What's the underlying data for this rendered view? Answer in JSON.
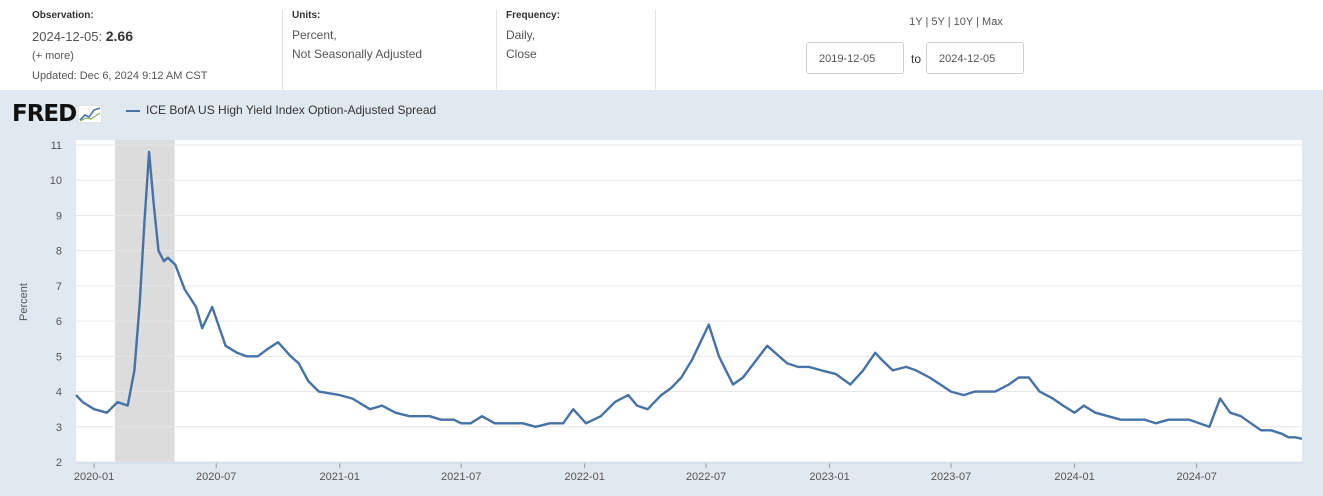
{
  "header": {
    "observation_label": "Observation:",
    "observation_date": "2024-12-05:",
    "observation_value": "2.66",
    "more_link": "(+ more)",
    "updated": "Updated: Dec 6, 2024 9:12 AM CST",
    "units_label": "Units:",
    "units_line1": "Percent,",
    "units_line2": "Not Seasonally Adjusted",
    "frequency_label": "Frequency:",
    "frequency_line1": "Daily,",
    "frequency_line2": "Close",
    "range_links": [
      "1Y",
      "5Y",
      "10Y",
      "Max"
    ],
    "start_date": "2019-12-05",
    "to_label": "to",
    "end_date": "2024-12-05"
  },
  "logo": "FRED",
  "colors": {
    "series": "#4572a7",
    "recession": "#dcdcdc",
    "background": "#e1e9f0"
  },
  "chart_data": {
    "type": "line",
    "title": "",
    "xlabel": "",
    "ylabel": "Percent",
    "ylim": [
      2,
      11
    ],
    "yticks": [
      "2",
      "3",
      "4",
      "5",
      "6",
      "7",
      "8",
      "9",
      "10",
      "11"
    ],
    "xlim": [
      "2019-12-05",
      "2024-12-05"
    ],
    "xticks": [
      "2020-01",
      "2020-07",
      "2021-01",
      "2021-07",
      "2022-01",
      "2022-07",
      "2023-01",
      "2023-07",
      "2024-01",
      "2024-07"
    ],
    "grid": "horizontal",
    "recession_shading": [
      [
        "2020-02-01",
        "2020-04-30"
      ]
    ],
    "series": [
      {
        "name": "ICE BofA US High Yield Index Option-Adjusted Spread",
        "x": [
          "2019-12-05",
          "2019-12-15",
          "2020-01-01",
          "2020-01-20",
          "2020-02-05",
          "2020-02-20",
          "2020-03-01",
          "2020-03-09",
          "2020-03-16",
          "2020-03-23",
          "2020-03-30",
          "2020-04-06",
          "2020-04-14",
          "2020-04-20",
          "2020-05-01",
          "2020-05-15",
          "2020-06-01",
          "2020-06-10",
          "2020-06-25",
          "2020-07-15",
          "2020-08-01",
          "2020-08-15",
          "2020-09-01",
          "2020-09-15",
          "2020-10-01",
          "2020-10-20",
          "2020-11-01",
          "2020-11-15",
          "2020-12-01",
          "2021-01-01",
          "2021-01-20",
          "2021-02-15",
          "2021-03-05",
          "2021-03-25",
          "2021-04-15",
          "2021-05-01",
          "2021-05-15",
          "2021-06-01",
          "2021-06-20",
          "2021-07-01",
          "2021-07-15",
          "2021-08-01",
          "2021-08-20",
          "2021-09-10",
          "2021-10-01",
          "2021-10-20",
          "2021-11-10",
          "2021-11-30",
          "2021-12-15",
          "2022-01-03",
          "2022-01-25",
          "2022-02-15",
          "2022-03-07",
          "2022-03-20",
          "2022-04-05",
          "2022-04-25",
          "2022-05-10",
          "2022-05-25",
          "2022-06-10",
          "2022-06-20",
          "2022-07-05",
          "2022-07-20",
          "2022-08-10",
          "2022-08-25",
          "2022-09-10",
          "2022-09-30",
          "2022-10-12",
          "2022-10-30",
          "2022-11-15",
          "2022-12-01",
          "2022-12-20",
          "2023-01-10",
          "2023-02-01",
          "2023-02-20",
          "2023-03-10",
          "2023-03-20",
          "2023-04-05",
          "2023-04-25",
          "2023-05-10",
          "2023-05-30",
          "2023-06-15",
          "2023-07-01",
          "2023-07-20",
          "2023-08-05",
          "2023-08-20",
          "2023-09-05",
          "2023-09-25",
          "2023-10-10",
          "2023-10-25",
          "2023-11-10",
          "2023-11-30",
          "2023-12-15",
          "2024-01-01",
          "2024-01-15",
          "2024-02-01",
          "2024-02-20",
          "2024-03-10",
          "2024-03-30",
          "2024-04-15",
          "2024-05-01",
          "2024-05-20",
          "2024-06-05",
          "2024-06-20",
          "2024-07-05",
          "2024-07-20",
          "2024-08-05",
          "2024-08-20",
          "2024-09-05",
          "2024-09-20",
          "2024-10-05",
          "2024-10-20",
          "2024-11-05",
          "2024-11-15",
          "2024-11-25",
          "2024-12-05"
        ],
        "values": [
          3.9,
          3.7,
          3.5,
          3.4,
          3.7,
          3.6,
          4.6,
          6.5,
          8.8,
          10.8,
          9.3,
          8.0,
          7.7,
          7.8,
          7.6,
          6.9,
          6.4,
          5.8,
          6.4,
          5.3,
          5.1,
          5.0,
          5.0,
          5.2,
          5.4,
          5.0,
          4.8,
          4.3,
          4.0,
          3.9,
          3.8,
          3.5,
          3.6,
          3.4,
          3.3,
          3.3,
          3.3,
          3.2,
          3.2,
          3.1,
          3.1,
          3.3,
          3.1,
          3.1,
          3.1,
          3.0,
          3.1,
          3.1,
          3.5,
          3.1,
          3.3,
          3.7,
          3.9,
          3.6,
          3.5,
          3.9,
          4.1,
          4.4,
          4.9,
          5.3,
          5.9,
          5.0,
          4.2,
          4.4,
          4.8,
          5.3,
          5.1,
          4.8,
          4.7,
          4.7,
          4.6,
          4.5,
          4.2,
          4.6,
          5.1,
          4.9,
          4.6,
          4.7,
          4.6,
          4.4,
          4.2,
          4.0,
          3.9,
          4.0,
          4.0,
          4.0,
          4.2,
          4.4,
          4.4,
          4.0,
          3.8,
          3.6,
          3.4,
          3.6,
          3.4,
          3.3,
          3.2,
          3.2,
          3.2,
          3.1,
          3.2,
          3.2,
          3.2,
          3.1,
          3.0,
          3.8,
          3.4,
          3.3,
          3.1,
          2.9,
          2.9,
          2.8,
          2.7,
          2.7,
          2.66
        ]
      }
    ]
  }
}
